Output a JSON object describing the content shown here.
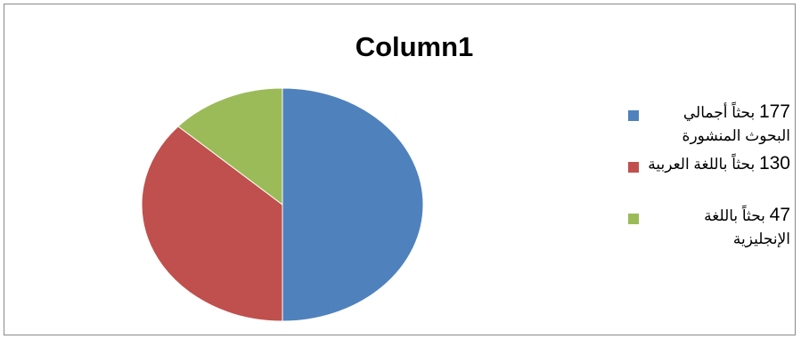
{
  "chart_data": {
    "type": "pie",
    "title": "Column1",
    "categories": [
      "177 بحثاً أجمالي البحوث المنشورة",
      "130 بحثاً باللغة العربية",
      "47 بحثاً باللغة الإنجليزية"
    ],
    "values": [
      177,
      130,
      47
    ],
    "colors": [
      "#4f81bd",
      "#c0504d",
      "#9bbb59"
    ],
    "legend_position": "right"
  },
  "legend": [
    {
      "number": "177",
      "text": "بحثاً أجمالي البحوث المنشورة",
      "color": "#4f81bd"
    },
    {
      "number": "130",
      "text": "بحثاً باللغة العربية",
      "color": "#c0504d"
    },
    {
      "number": "47",
      "text": "بحثاً باللغة الإنجليزية",
      "color": "#9bbb59"
    }
  ]
}
